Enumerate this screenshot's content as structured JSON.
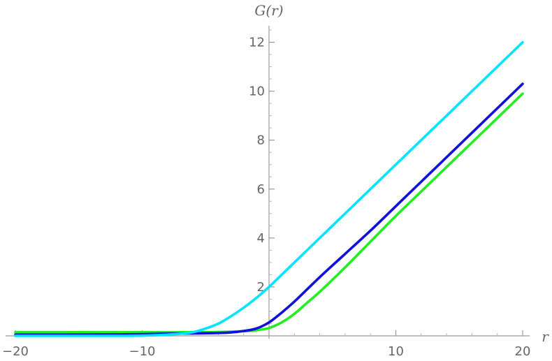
{
  "chart_data": {
    "type": "line",
    "title": "",
    "xlabel": "r",
    "ylabel": "G(r)",
    "xlim": [
      -20,
      20
    ],
    "ylim": [
      0,
      12.5
    ],
    "x_ticks": [
      -20,
      -10,
      10,
      20
    ],
    "x_tick_labels": [
      "−20",
      "−10",
      "10",
      "20"
    ],
    "y_ticks": [
      2,
      4,
      6,
      8,
      10,
      12
    ],
    "y_tick_labels": [
      "2",
      "4",
      "6",
      "8",
      "10",
      "12"
    ],
    "grid": false,
    "legend": "none",
    "series": [
      {
        "color": "#00e5ff",
        "x": [
          -20,
          -16,
          -12,
          -10,
          -8,
          -6,
          -5,
          -4,
          -3,
          -2,
          -1,
          0,
          1,
          2,
          3,
          4,
          6,
          8,
          10,
          12,
          16,
          20
        ],
        "y": [
          0.0,
          0.0,
          0.0,
          0.01,
          0.05,
          0.15,
          0.3,
          0.5,
          0.8,
          1.15,
          1.55,
          2.0,
          2.5,
          3.0,
          3.5,
          4.0,
          5.0,
          6.0,
          7.0,
          8.0,
          10.0,
          12.0
        ]
      },
      {
        "color": "#1010dd",
        "x": [
          -20,
          -16,
          -12,
          -10,
          -8,
          -6,
          -4,
          -3,
          -2,
          -1,
          0,
          1,
          2,
          3,
          4,
          6,
          8,
          10,
          12,
          16,
          20
        ],
        "y": [
          0.05,
          0.05,
          0.06,
          0.07,
          0.09,
          0.1,
          0.12,
          0.14,
          0.2,
          0.3,
          0.55,
          0.95,
          1.4,
          1.9,
          2.4,
          3.35,
          4.3,
          5.3,
          6.3,
          8.3,
          10.3
        ]
      },
      {
        "color": "#22ee22",
        "x": [
          -20,
          -16,
          -12,
          -10,
          -8,
          -6,
          -4,
          -3,
          -2,
          -1,
          0,
          1,
          2,
          3,
          4,
          6,
          8,
          10,
          12,
          16,
          20
        ],
        "y": [
          0.15,
          0.15,
          0.15,
          0.15,
          0.15,
          0.15,
          0.16,
          0.17,
          0.19,
          0.23,
          0.32,
          0.55,
          0.9,
          1.35,
          1.8,
          2.8,
          3.85,
          4.9,
          5.9,
          7.9,
          9.9
        ]
      }
    ]
  }
}
